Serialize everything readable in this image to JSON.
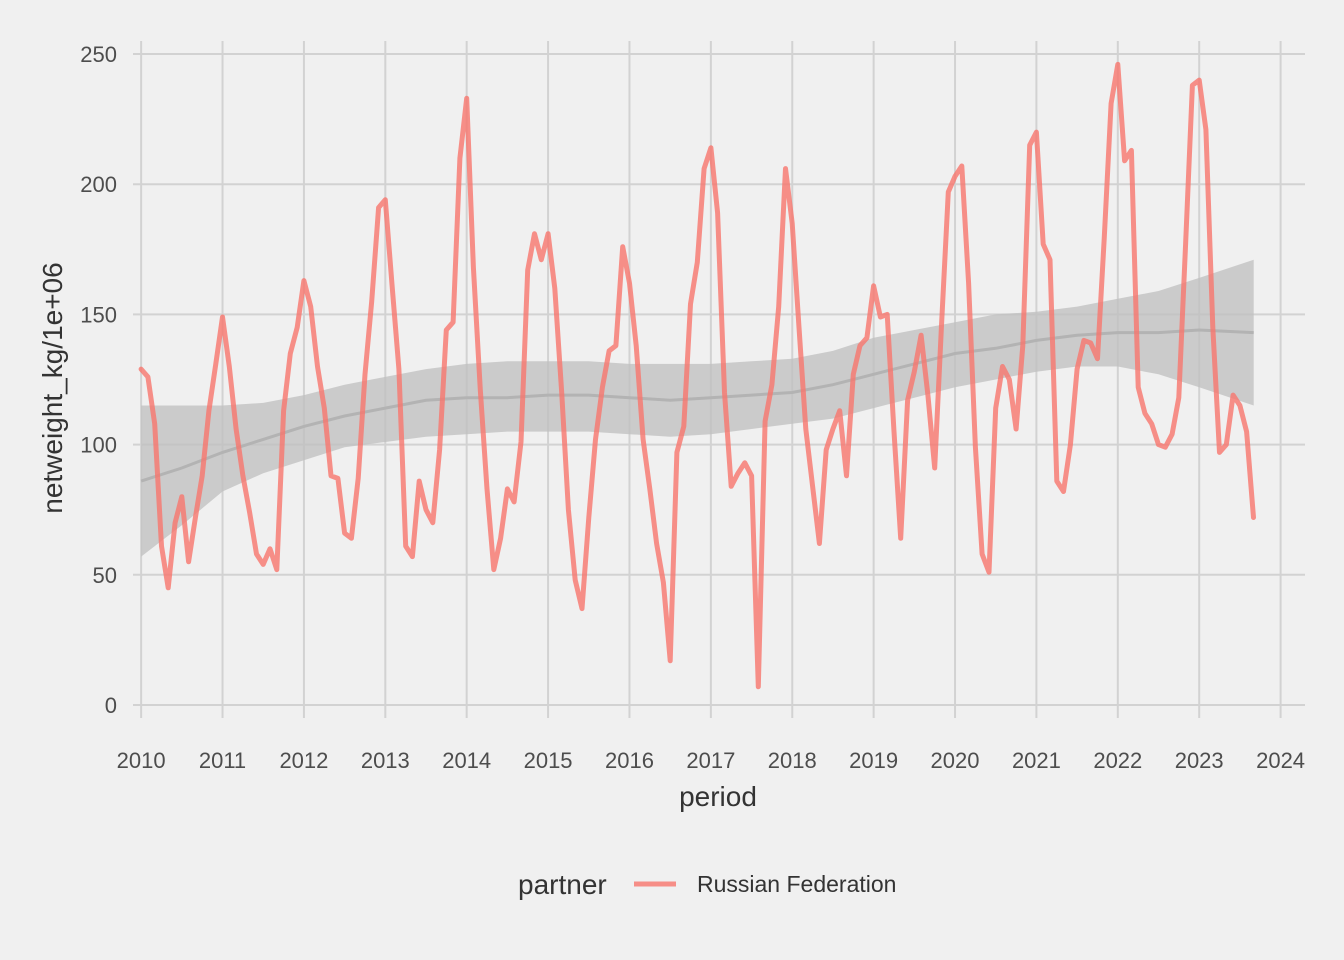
{
  "chart_data": {
    "type": "line",
    "xlabel": "period",
    "ylabel": "netweight_kg/1e+06",
    "xlim": [
      2009.9,
      2024.3
    ],
    "ylim": [
      -5,
      255
    ],
    "x_ticks": [
      "2010",
      "2011",
      "2012",
      "2013",
      "2014",
      "2015",
      "2016",
      "2017",
      "2018",
      "2019",
      "2020",
      "2021",
      "2022",
      "2023",
      "2024"
    ],
    "y_ticks": [
      "0",
      "50",
      "100",
      "150",
      "200",
      "250"
    ],
    "grid": true,
    "legend": {
      "title": "partner",
      "position": "bottom"
    },
    "colors": {
      "series": "#f8766d",
      "band": "#bfbfbf",
      "trend": "#b3b3b3",
      "background": "#f0f0f0",
      "grid": "#d2d2d2"
    },
    "series": [
      {
        "name": "Russian Federation",
        "values": [
          [
            2010.0,
            129
          ],
          [
            2010.083,
            126
          ],
          [
            2010.167,
            108
          ],
          [
            2010.25,
            61
          ],
          [
            2010.333,
            45
          ],
          [
            2010.417,
            70
          ],
          [
            2010.5,
            80
          ],
          [
            2010.583,
            55
          ],
          [
            2010.667,
            72
          ],
          [
            2010.75,
            88
          ],
          [
            2010.833,
            113
          ],
          [
            2010.917,
            131
          ],
          [
            2011.0,
            149
          ],
          [
            2011.083,
            130
          ],
          [
            2011.167,
            106
          ],
          [
            2011.25,
            88
          ],
          [
            2011.333,
            74
          ],
          [
            2011.417,
            58
          ],
          [
            2011.5,
            54
          ],
          [
            2011.583,
            60
          ],
          [
            2011.667,
            52
          ],
          [
            2011.75,
            113
          ],
          [
            2011.833,
            135
          ],
          [
            2011.917,
            145
          ],
          [
            2012.0,
            163
          ],
          [
            2012.083,
            153
          ],
          [
            2012.167,
            130
          ],
          [
            2012.25,
            114
          ],
          [
            2012.333,
            88
          ],
          [
            2012.417,
            87
          ],
          [
            2012.5,
            66
          ],
          [
            2012.583,
            64
          ],
          [
            2012.667,
            87
          ],
          [
            2012.75,
            127
          ],
          [
            2012.833,
            155
          ],
          [
            2012.917,
            191
          ],
          [
            2013.0,
            194
          ],
          [
            2013.083,
            161
          ],
          [
            2013.167,
            129
          ],
          [
            2013.25,
            61
          ],
          [
            2013.333,
            57
          ],
          [
            2013.417,
            86
          ],
          [
            2013.5,
            75
          ],
          [
            2013.583,
            70
          ],
          [
            2013.667,
            98
          ],
          [
            2013.75,
            144
          ],
          [
            2013.833,
            147
          ],
          [
            2013.917,
            210
          ],
          [
            2014.0,
            233
          ],
          [
            2014.083,
            168
          ],
          [
            2014.167,
            121
          ],
          [
            2014.25,
            83
          ],
          [
            2014.333,
            52
          ],
          [
            2014.417,
            64
          ],
          [
            2014.5,
            83
          ],
          [
            2014.583,
            78
          ],
          [
            2014.667,
            101
          ],
          [
            2014.75,
            167
          ],
          [
            2014.833,
            181
          ],
          [
            2014.917,
            171
          ],
          [
            2015.0,
            181
          ],
          [
            2015.083,
            160
          ],
          [
            2015.167,
            120
          ],
          [
            2015.25,
            75
          ],
          [
            2015.333,
            48
          ],
          [
            2015.417,
            37
          ],
          [
            2015.5,
            72
          ],
          [
            2015.583,
            102
          ],
          [
            2015.667,
            122
          ],
          [
            2015.75,
            136
          ],
          [
            2015.833,
            138
          ],
          [
            2015.917,
            176
          ],
          [
            2016.0,
            162
          ],
          [
            2016.083,
            138
          ],
          [
            2016.167,
            102
          ],
          [
            2016.25,
            83
          ],
          [
            2016.333,
            62
          ],
          [
            2016.417,
            47
          ],
          [
            2016.5,
            17
          ],
          [
            2016.583,
            97
          ],
          [
            2016.667,
            107
          ],
          [
            2016.75,
            154
          ],
          [
            2016.833,
            170
          ],
          [
            2016.917,
            206
          ],
          [
            2017.0,
            214
          ],
          [
            2017.083,
            189
          ],
          [
            2017.167,
            120
          ],
          [
            2017.25,
            84
          ],
          [
            2017.333,
            89
          ],
          [
            2017.417,
            93
          ],
          [
            2017.5,
            88
          ],
          [
            2017.583,
            7
          ],
          [
            2017.667,
            109
          ],
          [
            2017.75,
            123
          ],
          [
            2017.833,
            153
          ],
          [
            2017.917,
            206
          ],
          [
            2018.0,
            185
          ],
          [
            2018.083,
            145
          ],
          [
            2018.167,
            106
          ],
          [
            2018.25,
            84
          ],
          [
            2018.333,
            62
          ],
          [
            2018.417,
            98
          ],
          [
            2018.5,
            106
          ],
          [
            2018.583,
            113
          ],
          [
            2018.667,
            88
          ],
          [
            2018.75,
            127
          ],
          [
            2018.833,
            138
          ],
          [
            2018.917,
            141
          ],
          [
            2019.0,
            161
          ],
          [
            2019.083,
            149
          ],
          [
            2019.167,
            150
          ],
          [
            2019.25,
            105
          ],
          [
            2019.333,
            64
          ],
          [
            2019.417,
            117
          ],
          [
            2019.5,
            128
          ],
          [
            2019.583,
            142
          ],
          [
            2019.667,
            119
          ],
          [
            2019.75,
            91
          ],
          [
            2019.833,
            145
          ],
          [
            2019.917,
            197
          ],
          [
            2020.0,
            203
          ],
          [
            2020.083,
            207
          ],
          [
            2020.167,
            162
          ],
          [
            2020.25,
            99
          ],
          [
            2020.333,
            58
          ],
          [
            2020.417,
            51
          ],
          [
            2020.5,
            114
          ],
          [
            2020.583,
            130
          ],
          [
            2020.667,
            125
          ],
          [
            2020.75,
            106
          ],
          [
            2020.833,
            138
          ],
          [
            2020.917,
            215
          ],
          [
            2021.0,
            220
          ],
          [
            2021.083,
            177
          ],
          [
            2021.167,
            171
          ],
          [
            2021.25,
            86
          ],
          [
            2021.333,
            82
          ],
          [
            2021.417,
            100
          ],
          [
            2021.5,
            129
          ],
          [
            2021.583,
            140
          ],
          [
            2021.667,
            139
          ],
          [
            2021.75,
            133
          ],
          [
            2021.833,
            179
          ],
          [
            2021.917,
            231
          ],
          [
            2022.0,
            246
          ],
          [
            2022.083,
            209
          ],
          [
            2022.167,
            213
          ],
          [
            2022.25,
            122
          ],
          [
            2022.333,
            112
          ],
          [
            2022.417,
            108
          ],
          [
            2022.5,
            100
          ],
          [
            2022.583,
            99
          ],
          [
            2022.667,
            104
          ],
          [
            2022.75,
            118
          ],
          [
            2022.833,
            177
          ],
          [
            2022.917,
            238
          ],
          [
            2023.0,
            240
          ],
          [
            2023.083,
            221
          ],
          [
            2023.167,
            145
          ],
          [
            2023.25,
            97
          ],
          [
            2023.333,
            100
          ],
          [
            2023.417,
            119
          ],
          [
            2023.5,
            115
          ],
          [
            2023.583,
            105
          ],
          [
            2023.667,
            72
          ]
        ]
      }
    ],
    "smooth": [
      {
        "x": 2010.0,
        "y": 86,
        "lo": 57,
        "hi": 115
      },
      {
        "x": 2010.5,
        "y": 91,
        "lo": 69,
        "hi": 115
      },
      {
        "x": 2011.0,
        "y": 97,
        "lo": 82,
        "hi": 115
      },
      {
        "x": 2011.5,
        "y": 102,
        "lo": 89,
        "hi": 116
      },
      {
        "x": 2012.0,
        "y": 107,
        "lo": 94,
        "hi": 119
      },
      {
        "x": 2012.5,
        "y": 111,
        "lo": 99,
        "hi": 123
      },
      {
        "x": 2013.0,
        "y": 114,
        "lo": 101,
        "hi": 126
      },
      {
        "x": 2013.5,
        "y": 117,
        "lo": 103,
        "hi": 129
      },
      {
        "x": 2014.0,
        "y": 118,
        "lo": 104,
        "hi": 131
      },
      {
        "x": 2014.5,
        "y": 118,
        "lo": 105,
        "hi": 132
      },
      {
        "x": 2015.0,
        "y": 119,
        "lo": 105,
        "hi": 132
      },
      {
        "x": 2015.5,
        "y": 119,
        "lo": 105,
        "hi": 132
      },
      {
        "x": 2016.0,
        "y": 118,
        "lo": 104,
        "hi": 131
      },
      {
        "x": 2016.5,
        "y": 117,
        "lo": 103,
        "hi": 131
      },
      {
        "x": 2017.0,
        "y": 118,
        "lo": 104,
        "hi": 131
      },
      {
        "x": 2017.5,
        "y": 119,
        "lo": 106,
        "hi": 132
      },
      {
        "x": 2018.0,
        "y": 120,
        "lo": 108,
        "hi": 133
      },
      {
        "x": 2018.5,
        "y": 123,
        "lo": 110,
        "hi": 136
      },
      {
        "x": 2019.0,
        "y": 127,
        "lo": 114,
        "hi": 141
      },
      {
        "x": 2019.5,
        "y": 131,
        "lo": 118,
        "hi": 144
      },
      {
        "x": 2020.0,
        "y": 135,
        "lo": 122,
        "hi": 147
      },
      {
        "x": 2020.5,
        "y": 137,
        "lo": 125,
        "hi": 150
      },
      {
        "x": 2021.0,
        "y": 140,
        "lo": 128,
        "hi": 151
      },
      {
        "x": 2021.5,
        "y": 142,
        "lo": 130,
        "hi": 153
      },
      {
        "x": 2022.0,
        "y": 143,
        "lo": 130,
        "hi": 156
      },
      {
        "x": 2022.5,
        "y": 143,
        "lo": 127,
        "hi": 159
      },
      {
        "x": 2023.0,
        "y": 144,
        "lo": 122,
        "hi": 164
      },
      {
        "x": 2023.67,
        "y": 143,
        "lo": 115,
        "hi": 171
      }
    ]
  }
}
